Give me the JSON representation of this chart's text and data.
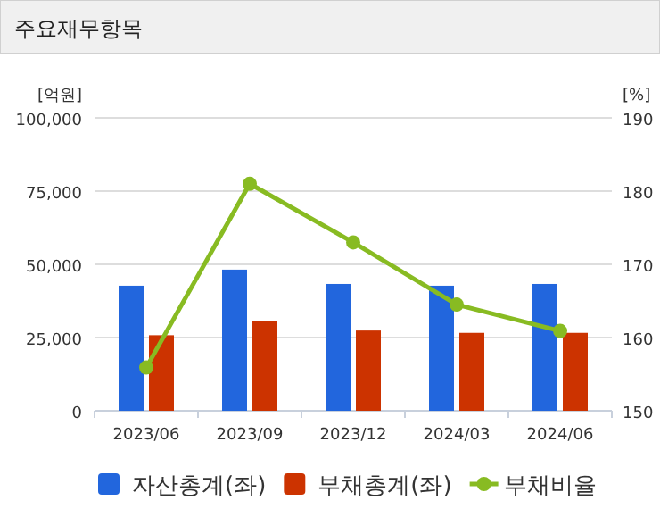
{
  "chart_data": {
    "type": "bar",
    "title": "주요재무항목",
    "ylabel": "[억원]",
    "y2label": "[%]",
    "categories": [
      "2023/06",
      "2023/09",
      "2023/12",
      "2024/03",
      "2024/06"
    ],
    "series": [
      {
        "name": "자산총계(좌)",
        "color": "#2266dd",
        "values": [
          42700,
          48200,
          43300,
          42700,
          43300
        ]
      },
      {
        "name": "부채총계(좌)",
        "color": "#cc3300",
        "values": [
          25800,
          30500,
          27400,
          26600,
          26600
        ]
      },
      {
        "name": "부채비율",
        "type": "line",
        "axis": "y2",
        "color": "#88bb22",
        "marker": "circle",
        "values": [
          155.9,
          181.0,
          173.0,
          164.5,
          160.9
        ]
      }
    ],
    "ylim": [
      0,
      100000
    ],
    "yticks": [
      {
        "value": 0,
        "label": "0"
      },
      {
        "value": 25000,
        "label": "25,000"
      },
      {
        "value": 50000,
        "label": "50,000"
      },
      {
        "value": 75000,
        "label": "75,000"
      },
      {
        "value": 100000,
        "label": "100,000"
      }
    ],
    "y2lim": [
      150,
      190
    ],
    "y2ticks": [
      150,
      160,
      170,
      180,
      190
    ],
    "grid": "y",
    "legend": "bottom"
  }
}
